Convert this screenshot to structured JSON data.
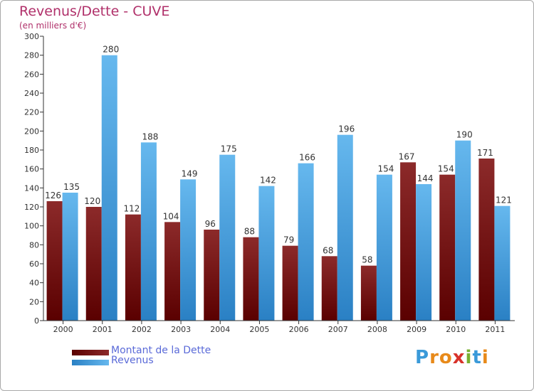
{
  "title": "Revenus/Dette - CUVE",
  "subtitle": "(en milliers d'€)",
  "colors": {
    "title": "#b0306a",
    "dette_top": "#8c2a2a",
    "dette_bottom": "#5a0000",
    "revenus_top": "#66b8ee",
    "revenus_bottom": "#2a80c4",
    "legend_text": "#5a6ad8",
    "axis": "#333333",
    "grid": "#cccccc"
  },
  "legend": {
    "dette": "Montant de la Dette",
    "revenus": "Revenus"
  },
  "logo": {
    "text": "Proxiti",
    "letters": [
      "P",
      "r",
      "o",
      "x",
      "i",
      "t",
      "i"
    ],
    "letter_colors": [
      "#3a9ad9",
      "#e88a1a",
      "#e88a1a",
      "#d8322a",
      "#7ab030",
      "#3a9ad9",
      "#e88a1a"
    ]
  },
  "chart_data": {
    "type": "bar",
    "title": "Revenus/Dette - CUVE",
    "subtitle": "(en milliers d'€)",
    "categories": [
      "2000",
      "2001",
      "2002",
      "2003",
      "2004",
      "2005",
      "2006",
      "2007",
      "2008",
      "2009",
      "2010",
      "2011"
    ],
    "series": [
      {
        "name": "Montant de la Dette",
        "values": [
          126,
          120,
          112,
          104,
          96,
          88,
          79,
          68,
          58,
          167,
          154,
          171
        ]
      },
      {
        "name": "Revenus",
        "values": [
          135,
          280,
          188,
          149,
          175,
          142,
          166,
          196,
          154,
          144,
          190,
          121
        ]
      }
    ],
    "ylim": [
      0,
      300
    ],
    "yticks": [
      0,
      20,
      40,
      60,
      80,
      100,
      120,
      140,
      160,
      180,
      200,
      220,
      240,
      260,
      280,
      300
    ],
    "grid": false,
    "legend_position": "bottom-left"
  }
}
